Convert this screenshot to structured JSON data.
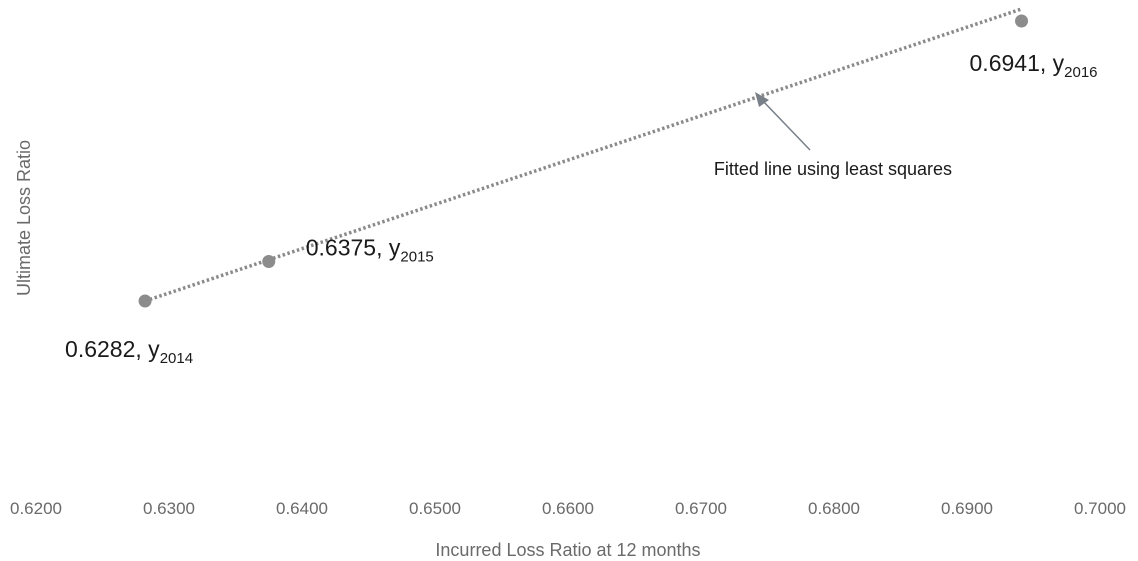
{
  "chart_data": {
    "type": "scatter",
    "title": "",
    "xlabel": "Incurred Loss Ratio at 12 months",
    "ylabel": "Ultimate Loss Ratio",
    "xlim": [
      0.62,
      0.7
    ],
    "xticks": [
      "0.6200",
      "0.6300",
      "0.6400",
      "0.6500",
      "0.6600",
      "0.6700",
      "0.6800",
      "0.6900",
      "0.7000"
    ],
    "points": [
      {
        "x": 0.6282,
        "y": 0.6282,
        "value_label": "0.6282, y",
        "subscript": "2014"
      },
      {
        "x": 0.6375,
        "y": 0.6375,
        "value_label": "0.6375, y",
        "subscript": "2015"
      },
      {
        "x": 0.6941,
        "y": 0.6941,
        "value_label": "0.6941, y",
        "subscript": "2016"
      }
    ],
    "trendline": {
      "method": "least squares",
      "style": "dotted"
    },
    "annotation": "Fitted line using least squares",
    "grid": false,
    "legend": "none",
    "marker_color": "#8c8c8c",
    "line_color": "#8a8a8a"
  }
}
